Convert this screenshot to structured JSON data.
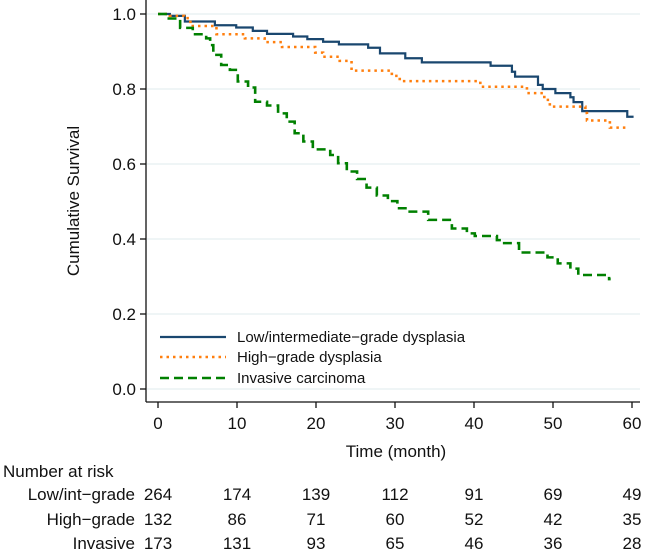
{
  "chart_data": {
    "type": "line",
    "subtype": "kaplan-meier step",
    "xlabel": "Time (month)",
    "ylabel": "Cumulative Survival",
    "xlim": [
      0,
      60
    ],
    "ylim": [
      0,
      1
    ],
    "xticks": [
      "0",
      "10",
      "20",
      "30",
      "40",
      "50",
      "60"
    ],
    "yticks": [
      "0.0",
      "0.2",
      "0.4",
      "0.6",
      "0.8",
      "1.0"
    ],
    "grid": "horizontal",
    "legend_position": "bottom-left inside",
    "series": [
      {
        "name": "Low/intermediate-grade dysplasia",
        "color": "#1a476f",
        "style": "solid",
        "points": [
          [
            0,
            1
          ],
          [
            1.5,
            0.995
          ],
          [
            3.4,
            0.98
          ],
          [
            7.2,
            0.97
          ],
          [
            9.9,
            0.964
          ],
          [
            12,
            0.955
          ],
          [
            13.8,
            0.947
          ],
          [
            17.1,
            0.94
          ],
          [
            18.9,
            0.933
          ],
          [
            20.9,
            0.926
          ],
          [
            22.9,
            0.919
          ],
          [
            26.6,
            0.91
          ],
          [
            28.1,
            0.895
          ],
          [
            31.3,
            0.882
          ],
          [
            33.4,
            0.871
          ],
          [
            42.1,
            0.862
          ],
          [
            44.8,
            0.846
          ],
          [
            45.2,
            0.833
          ],
          [
            48.1,
            0.811
          ],
          [
            48.7,
            0.8
          ],
          [
            50.3,
            0.789
          ],
          [
            52.2,
            0.778
          ],
          [
            52.6,
            0.765
          ],
          [
            53.7,
            0.741
          ],
          [
            59.4,
            0.726
          ],
          [
            60.2,
            0.726
          ]
        ]
      },
      {
        "name": "High-grade dysplasia",
        "color": "#ff7f0e",
        "style": "dotted",
        "points": [
          [
            0,
            1
          ],
          [
            1.5,
            0.995
          ],
          [
            3.3,
            0.989
          ],
          [
            4.1,
            0.968
          ],
          [
            7.4,
            0.946
          ],
          [
            11,
            0.935
          ],
          [
            13.5,
            0.925
          ],
          [
            15.7,
            0.912
          ],
          [
            19.9,
            0.897
          ],
          [
            20.9,
            0.886
          ],
          [
            23,
            0.875
          ],
          [
            24.5,
            0.849
          ],
          [
            29.6,
            0.835
          ],
          [
            30.6,
            0.821
          ],
          [
            40.8,
            0.806
          ],
          [
            46.7,
            0.789
          ],
          [
            48.9,
            0.771
          ],
          [
            49.6,
            0.753
          ],
          [
            54.1,
            0.736
          ],
          [
            54.3,
            0.716
          ],
          [
            57.2,
            0.697
          ],
          [
            59.4,
            0.697
          ]
        ]
      },
      {
        "name": "Invasive carcinoma",
        "color": "#008000",
        "style": "dashed",
        "points": [
          [
            0,
            1
          ],
          [
            1.2,
            0.988
          ],
          [
            2.8,
            0.963
          ],
          [
            4.4,
            0.946
          ],
          [
            6.1,
            0.935
          ],
          [
            6.6,
            0.917
          ],
          [
            7,
            0.891
          ],
          [
            8,
            0.864
          ],
          [
            9.1,
            0.851
          ],
          [
            10.1,
            0.82
          ],
          [
            11.4,
            0.804
          ],
          [
            12.3,
            0.766
          ],
          [
            13.8,
            0.756
          ],
          [
            15.2,
            0.735
          ],
          [
            16.3,
            0.713
          ],
          [
            17.3,
            0.682
          ],
          [
            18.4,
            0.66
          ],
          [
            19.6,
            0.639
          ],
          [
            21.8,
            0.624
          ],
          [
            22.8,
            0.602
          ],
          [
            23.9,
            0.58
          ],
          [
            25.2,
            0.56
          ],
          [
            26.4,
            0.537
          ],
          [
            27.7,
            0.516
          ],
          [
            29.1,
            0.501
          ],
          [
            30.3,
            0.482
          ],
          [
            31.5,
            0.473
          ],
          [
            34.2,
            0.451
          ],
          [
            37.2,
            0.428
          ],
          [
            39.1,
            0.415
          ],
          [
            40.1,
            0.408
          ],
          [
            42.9,
            0.397
          ],
          [
            43.5,
            0.389
          ],
          [
            45.7,
            0.364
          ],
          [
            49.3,
            0.351
          ],
          [
            50.6,
            0.335
          ],
          [
            52.2,
            0.321
          ],
          [
            53.2,
            0.304
          ],
          [
            57.1,
            0.293
          ],
          [
            57.3,
            0.293
          ]
        ]
      }
    ],
    "risk_table": {
      "title": "Number at risk",
      "times": [
        0,
        10,
        20,
        30,
        40,
        50,
        60
      ],
      "rows": [
        {
          "label": "Low/int−grade",
          "values": [
            "264",
            "174",
            "139",
            "112",
            "91",
            "69",
            "49"
          ]
        },
        {
          "label": "High−grade",
          "values": [
            "132",
            "86",
            "71",
            "60",
            "52",
            "42",
            "35"
          ]
        },
        {
          "label": "Invasive",
          "values": [
            "173",
            "131",
            "93",
            "65",
            "46",
            "36",
            "28"
          ]
        }
      ]
    },
    "legend_labels": [
      "Low/intermediate−grade dysplasia",
      "High−grade dysplasia",
      "Invasive carcinoma"
    ]
  }
}
